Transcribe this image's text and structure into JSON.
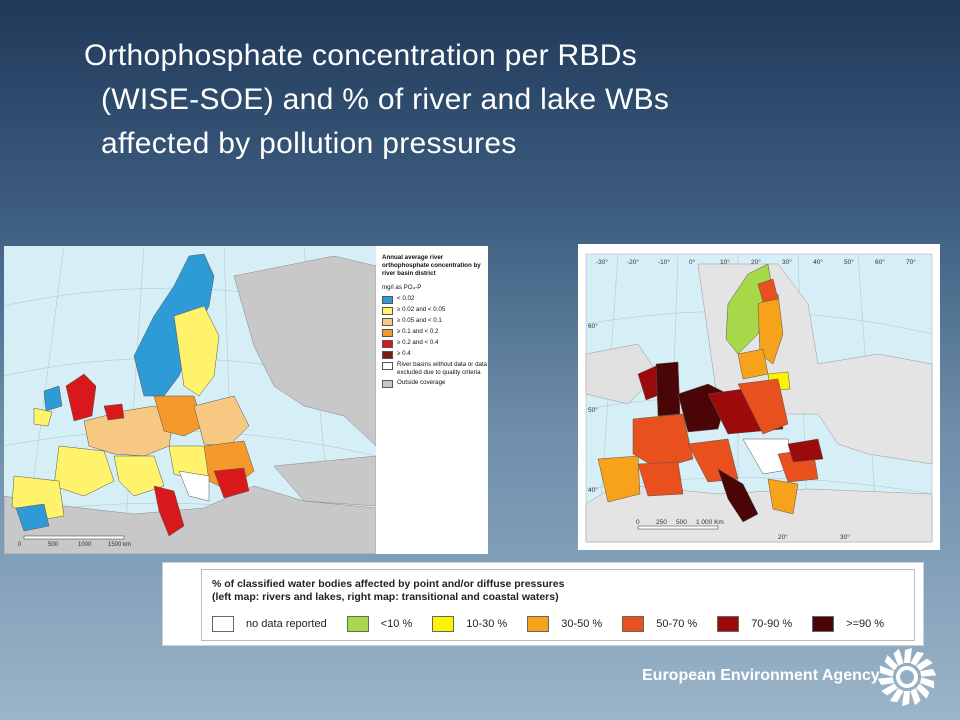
{
  "slide": {
    "title_line1": "Orthophosphate concentration per RBDs",
    "title_line2": "(WISE-SOE) and % of river and lake WBs",
    "title_line3": "affected by pollution pressures"
  },
  "left_map": {
    "scale_labels": [
      "0",
      "500",
      "1000",
      "1500 km"
    ],
    "legend": {
      "title": "Annual average river orthophosphate concentration by river basin district",
      "unit": "mg/l as PO₄-P",
      "items": [
        {
          "label": "< 0.02",
          "color": "#2e9ad6"
        },
        {
          "label": "≥ 0.02 and < 0.05",
          "color": "#fff36b"
        },
        {
          "label": "≥ 0.05 and < 0.1",
          "color": "#f7c882"
        },
        {
          "label": "≥ 0.1 and < 0.2",
          "color": "#f39a2b"
        },
        {
          "label": "≥ 0.2 and < 0.4",
          "color": "#d7191c"
        },
        {
          "label": "≥ 0.4",
          "color": "#7a1d10"
        },
        {
          "label": "River basins without data or data excluded due to quality criteria",
          "color": "#ffffff"
        },
        {
          "label": "Outside coverage",
          "color": "#c8c8c8"
        }
      ]
    }
  },
  "right_map": {
    "lon_labels": [
      "-30°",
      "-20°",
      "-10°",
      "0°",
      "10°",
      "20°",
      "30°",
      "40°",
      "50°",
      "60°",
      "70°"
    ],
    "lat_labels": [
      "60°",
      "50°",
      "40°"
    ],
    "bottom_labels": [
      "20°",
      "30°"
    ],
    "scale_labels": [
      "0",
      "250",
      "500",
      "1 000 Km"
    ]
  },
  "bottom_legend": {
    "title_line1": "% of classified water bodies affected by point and/or diffuse pressures",
    "title_line2": "(left map: rivers and lakes, right map: transitional and coastal waters)",
    "items": [
      {
        "label": "no data reported",
        "color": "#ffffff"
      },
      {
        "label": "<10 %",
        "color": "#a6d84a"
      },
      {
        "label": "10-30 %",
        "color": "#fff200"
      },
      {
        "label": "30-50 %",
        "color": "#f7a21b"
      },
      {
        "label": "50-70 %",
        "color": "#e8501e"
      },
      {
        "label": "70-90 %",
        "color": "#9b0b0b"
      },
      {
        "label": ">=90 %",
        "color": "#4a0606"
      }
    ]
  },
  "footer": {
    "organization": "European Environment Agency"
  }
}
